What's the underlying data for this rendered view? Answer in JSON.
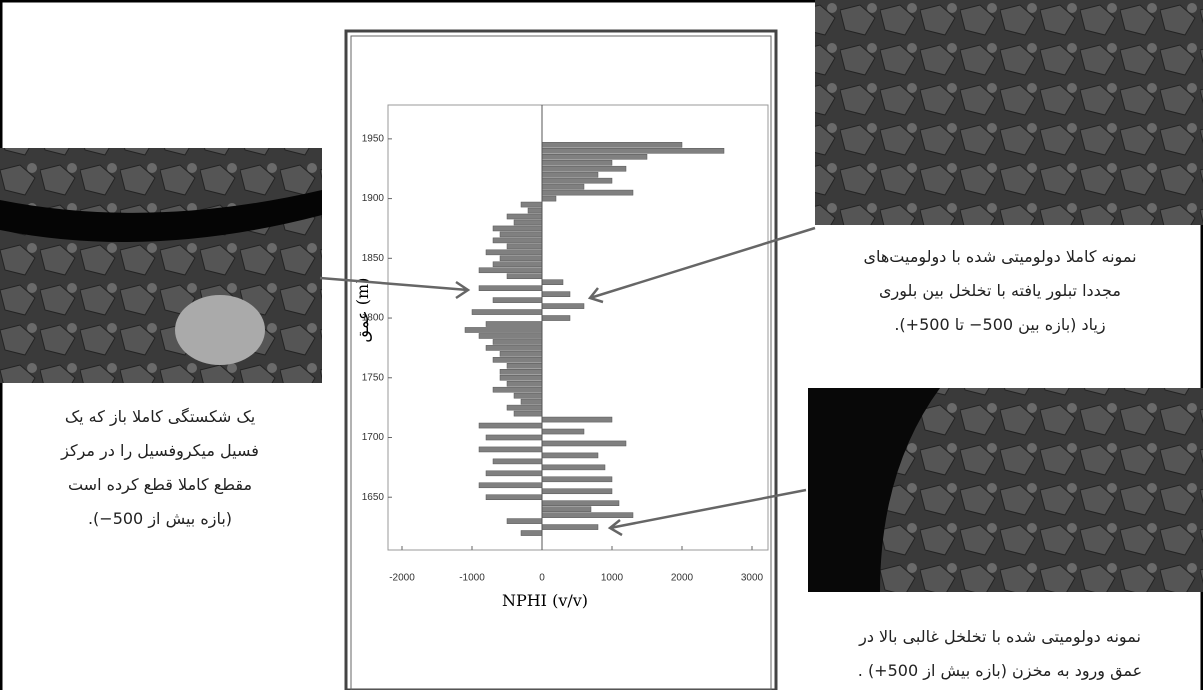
{
  "chart_data": {
    "type": "bar",
    "orientation": "horizontal",
    "x_label": "NPHI (v/v)",
    "y_label": "عمق (m)",
    "color": "#808080",
    "categories": [
      1945,
      1940,
      1935,
      1930,
      1925,
      1920,
      1915,
      1910,
      1905,
      1900,
      1895,
      1890,
      1885,
      1880,
      1875,
      1870,
      1865,
      1860,
      1855,
      1850,
      1845,
      1840,
      1835,
      1830,
      1825,
      1820,
      1815,
      1810,
      1805,
      1800,
      1795,
      1790,
      1785,
      1780,
      1775,
      1770,
      1765,
      1760,
      1755,
      1750,
      1745,
      1740,
      1735,
      1730,
      1725,
      1720,
      1715,
      1710,
      1705,
      1700,
      1695,
      1690,
      1685,
      1680,
      1675,
      1670,
      1665,
      1660,
      1655,
      1650,
      1645,
      1640,
      1635,
      1630,
      1625,
      1620
    ],
    "values": [
      2000,
      2600,
      1500,
      1000,
      1200,
      800,
      1000,
      600,
      1300,
      200,
      -300,
      -200,
      -500,
      -400,
      -700,
      -600,
      -700,
      -500,
      -800,
      -600,
      -700,
      -900,
      -500,
      300,
      -900,
      400,
      -700,
      600,
      -1000,
      400,
      -800,
      -1100,
      -900,
      -700,
      -800,
      -600,
      -700,
      -500,
      -600,
      -600,
      -500,
      -700,
      -400,
      -300,
      -500,
      -400,
      1000,
      -900,
      600,
      -800,
      1200,
      -900,
      800,
      -700,
      900,
      -800,
      1000,
      -900,
      1000,
      -800,
      1100,
      700,
      1300,
      -500,
      800,
      -300
    ],
    "xlim": [
      -2000,
      3000
    ],
    "xticks": [
      -2000,
      -1000,
      0,
      1000,
      2000,
      3000
    ],
    "ylim": [
      1610,
      1975
    ],
    "yticks": [
      1650,
      1700,
      1750,
      1800,
      1850,
      1900,
      1950
    ]
  },
  "captions": {
    "top_right": [
      "نمونه کاملا دولومیتی شده با دولومیت‌های",
      "مجددا تبلور یافته با تخلخل بین بلوری",
      "زیاد (بازه بین 500− تا 500+)."
    ],
    "left": [
      "یک شکستگی کاملا باز که یک",
      "فسیل میکروفسیل را در مرکز",
      "مقطع کاملا قطع کرده است",
      "(بازه بیش از 500−)."
    ],
    "bottom_right": [
      "نمونه دولومیتی شده با تخلخل غالبی بالا در",
      "عمق ورود به مخزن (بازه بیش از 500+) ."
    ]
  }
}
